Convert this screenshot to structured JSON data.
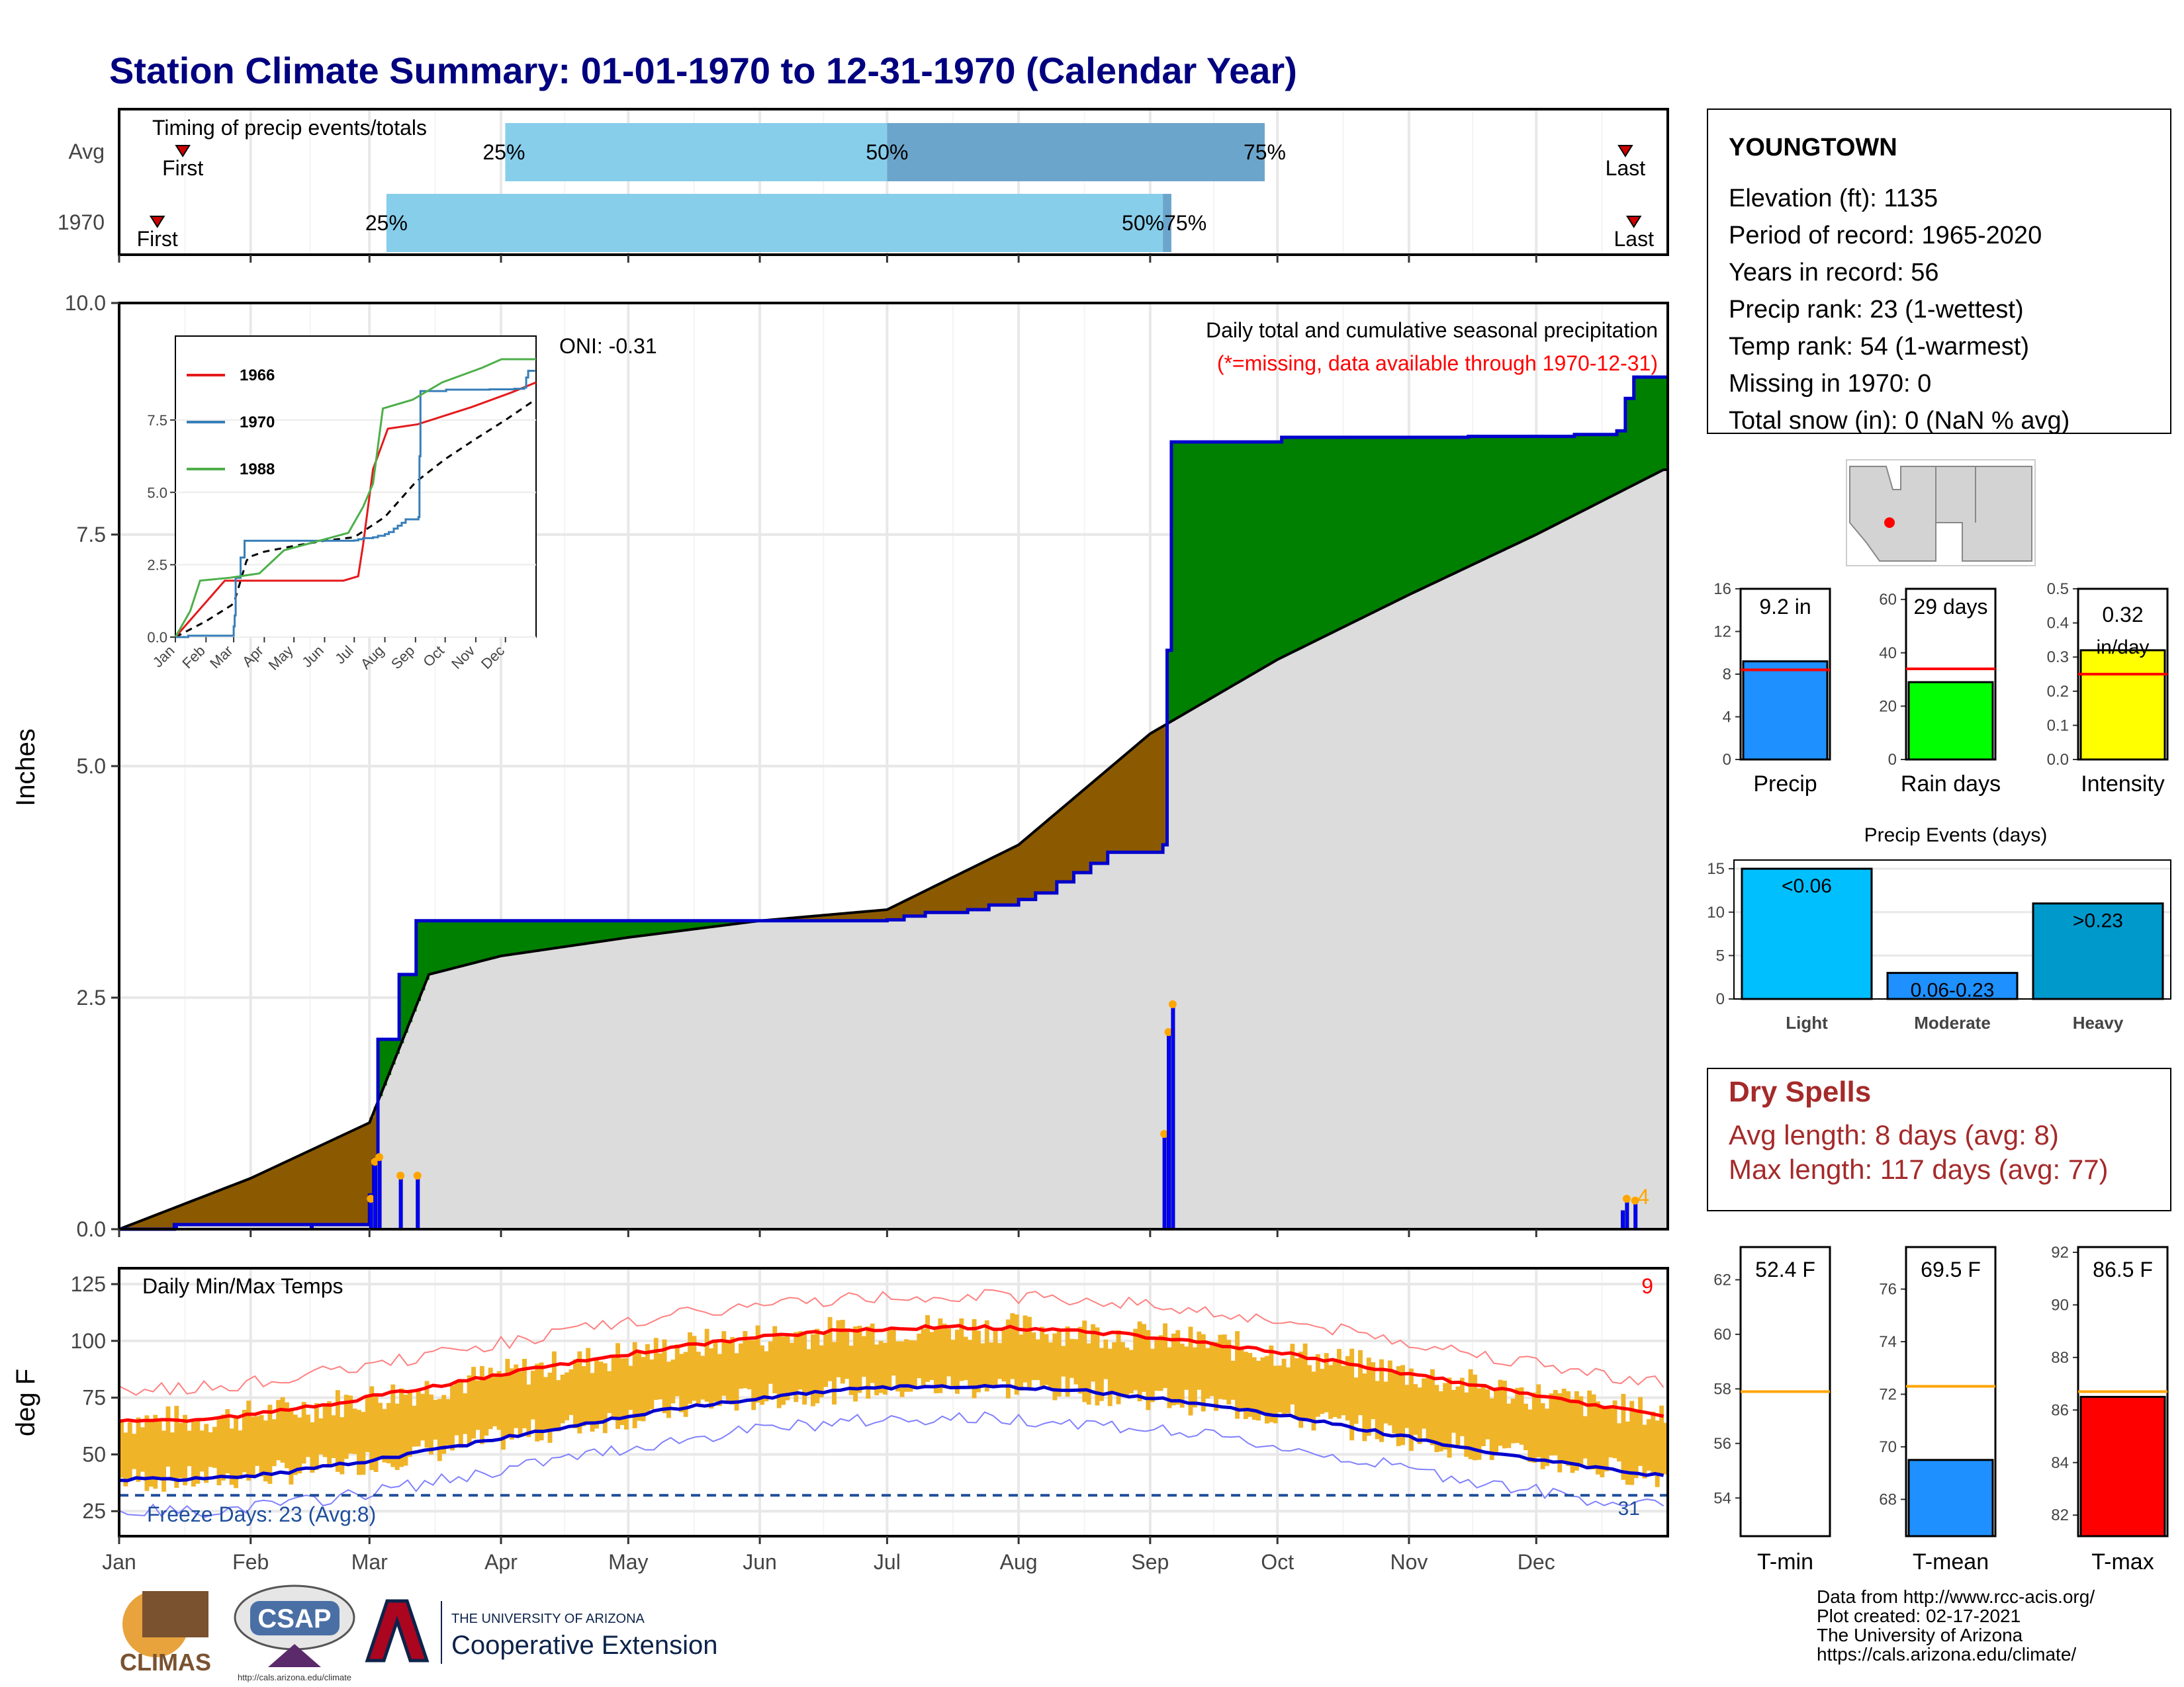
{
  "title": "Station Climate Summary: 01-01-1970 to 12-31-1970 (Calendar Year)",
  "colors": {
    "title": "#000080",
    "above_normal": "#008000",
    "below_normal": "#8b5a00",
    "normal_fill": "#dcdcdc",
    "observed_line": "#0000cc",
    "daily_precip": "#0000ff",
    "temp_bar": "#f0b429",
    "tmax_normal": "#ff0000",
    "tmin_normal": "#0000cc",
    "freeze_line": "#1f4e9c",
    "precip_bar": "#1e90ff",
    "rain_bar": "#00ff00",
    "intensity_bar": "#ffff00",
    "tmin_bar": "#ffffff",
    "tmean_bar": "#1e90ff",
    "tmax_bar": "#ff0000",
    "light": "#00bfff",
    "moderate": "#1e90ff",
    "heavy": "#0099cc",
    "dry_spell_text": "#a52a2a",
    "q25": "#87ceeb",
    "q75": "#6ca5cc"
  },
  "timing": {
    "title": "Timing of precip events/totals",
    "rows": [
      "Avg",
      "1970"
    ],
    "first_label": "First",
    "last_label": "Last",
    "avg": {
      "first": "Jan 16",
      "p25": "Apr 2",
      "p50": "Jul 1",
      "p75": "Sep 28",
      "last": "Dec 22"
    },
    "y1970": {
      "first": "Jan 10",
      "p25": "Mar 5",
      "p50": "Sep 4",
      "p75": "Sep 6",
      "last": "Dec 24"
    },
    "labels": {
      "p25": "25%",
      "p50": "50%",
      "p75": "75%",
      "overlap": "50%75%"
    }
  },
  "main": {
    "ylabel": "Inches",
    "header": "Daily total and cumulative seasonal precipitation",
    "missing_note": "(*=missing, data available through 1970-12-31)",
    "oni": "ONI: -0.31",
    "corner_count": "4",
    "y_ticks": [
      "0.0",
      "2.5",
      "5.0",
      "7.5",
      "10.0"
    ]
  },
  "inset": {
    "legend": [
      "1966",
      "1970",
      "1988"
    ],
    "legend_colors": [
      "#e41a1c",
      "#377eb8",
      "#4daf4a"
    ],
    "y_ticks": [
      "0.0",
      "2.5",
      "5.0",
      "7.5"
    ],
    "x_ticks": [
      "Jan",
      "Feb",
      "Mar",
      "Apr",
      "May",
      "Jun",
      "Jul",
      "Aug",
      "Sep",
      "Oct",
      "Nov",
      "Dec"
    ]
  },
  "temps": {
    "ylabel": "deg F",
    "title": "Daily Min/Max Temps",
    "freeze_label": "Freeze Days: 23 (Avg:8)",
    "corner_red": "9",
    "corner_blue": "31",
    "y_ticks": [
      "25",
      "50",
      "75",
      "100",
      "125"
    ]
  },
  "months": [
    "Jan",
    "Feb",
    "Mar",
    "Apr",
    "May",
    "Jun",
    "Jul",
    "Aug",
    "Sep",
    "Oct",
    "Nov",
    "Dec"
  ],
  "station": {
    "name": "YOUNGTOWN",
    "lines": [
      "Elevation (ft): 1135",
      "Period of record: 1965-2020",
      "Years in record: 56",
      "Precip rank: 23 (1-wettest)",
      "Temp rank: 54 (1-warmest)",
      "Missing in 1970: 0",
      "Total snow (in): 0 (NaN % avg)"
    ]
  },
  "summary_bars": [
    {
      "label": "Precip",
      "value_text": "9.2 in",
      "value": 9.2,
      "avg": 8.4,
      "ticks": [
        "0",
        "4",
        "8",
        "12",
        "16"
      ],
      "max": 16
    },
    {
      "label": "Rain days",
      "value_text": "29 days",
      "value": 29,
      "avg": 34,
      "ticks": [
        "0",
        "20",
        "40",
        "60"
      ],
      "max": 64
    },
    {
      "label": "Intensity",
      "value_text": "0.32\nin/day",
      "value_line1": "0.32",
      "value_line2": "in/day",
      "value": 0.32,
      "avg": 0.25,
      "ticks": [
        "0.0",
        "0.1",
        "0.2",
        "0.3",
        "0.4",
        "0.5"
      ],
      "max": 0.5
    }
  ],
  "precip_events": {
    "title": "Precip Events (days)",
    "categories": [
      "Light",
      "Moderate",
      "Heavy"
    ],
    "values": [
      15,
      3,
      11
    ],
    "bar_labels": [
      "<0.06",
      "0.06-0.23",
      ">0.23"
    ],
    "ticks": [
      "0",
      "5",
      "10",
      "15"
    ]
  },
  "dry_spells": {
    "title": "Dry Spells",
    "avg_line": "Avg length: 8 days (avg: 8)",
    "max_line": "Max length: 117 days (avg: 77)"
  },
  "temp_bars": [
    {
      "label": "T-min",
      "value_text": "52.4 F",
      "value": 52.4,
      "avg": 57.9,
      "min": 52.6,
      "max": 63.2,
      "ticks": [
        "54",
        "56",
        "58",
        "60",
        "62"
      ]
    },
    {
      "label": "T-mean",
      "value_text": "69.5 F",
      "value": 69.5,
      "avg": 72.3,
      "min": 66.6,
      "max": 77.6,
      "ticks": [
        "68",
        "70",
        "72",
        "74",
        "76"
      ]
    },
    {
      "label": "T-max",
      "value_text": "86.5 F",
      "value": 86.5,
      "avg": 86.7,
      "min": 81.2,
      "max": 92.2,
      "ticks": [
        "82",
        "84",
        "86",
        "88",
        "90",
        "92"
      ]
    }
  ],
  "footer": {
    "lines": [
      "Data from http://www.rcc-acis.org/",
      "Plot created: 02-17-2021",
      "The University of Arizona",
      "https://cals.arizona.edu/climate/"
    ],
    "climas": "CLIMAS",
    "csap": "CSAP",
    "csap_url": "http://cals.arizona.edu/climate",
    "ua_top": "THE UNIVERSITY OF ARIZONA",
    "ua_bottom": "Cooperative Extension"
  },
  "chart_data": {
    "type": "line",
    "title": "Daily total and cumulative seasonal precipitation",
    "ylabel": "Inches",
    "ylim": [
      0,
      10
    ],
    "series": [
      {
        "name": "1970",
        "x": [
          "Jan 1",
          "Jan 14",
          "Feb 15",
          "Mar 1",
          "Mar 2",
          "Mar 3",
          "Mar 8",
          "Mar 12",
          "Jun 1",
          "Jul 1",
          "Jul 5",
          "Jul 10",
          "Jul 20",
          "Jul 25",
          "Aug 1",
          "Aug 5",
          "Aug 10",
          "Aug 14",
          "Aug 18",
          "Aug 22",
          "Sep 4",
          "Sep 5",
          "Sep 6",
          "Sep 30",
          "Oct 2",
          "Nov 1",
          "Nov 15",
          "Dec 1",
          "Dec 10",
          "Dec 20",
          "Dec 22",
          "Dec 24",
          "Dec 31"
        ],
        "values": [
          0.0,
          0.05,
          0.05,
          0.37,
          0.75,
          2.05,
          2.75,
          3.33,
          3.33,
          3.34,
          3.38,
          3.42,
          3.45,
          3.5,
          3.56,
          3.63,
          3.75,
          3.85,
          3.95,
          4.07,
          4.15,
          6.25,
          8.5,
          8.5,
          8.55,
          8.55,
          8.56,
          8.56,
          8.58,
          8.62,
          8.97,
          9.2,
          9.2
        ]
      },
      {
        "name": "",
        "x": [
          "Jan 1",
          "Feb 1",
          "Mar 1",
          "Mar 15",
          "Apr 1",
          "May 1",
          "Jun 1",
          "Jul 1",
          "Aug 1",
          "Sep 1",
          "Oct 1",
          "Nov 1",
          "Dec 1",
          "Dec 31"
        ],
        "values": [
          0.0,
          0.55,
          1.15,
          2.75,
          2.95,
          3.15,
          3.33,
          3.45,
          4.15,
          5.35,
          6.15,
          6.85,
          7.5,
          8.2
        ]
      }
    ],
    "daily_precip": {
      "x": [
        "Jan 14",
        "Feb 15",
        "Mar 1",
        "Mar 2",
        "Mar 3",
        "Mar 8",
        "Mar 12",
        "Sep 4",
        "Sep 5",
        "Sep 6",
        "Dec 21",
        "Dec 22",
        "Dec 24"
      ],
      "values": [
        0.05,
        0.03,
        0.3,
        0.7,
        0.75,
        0.55,
        0.55,
        1.0,
        2.1,
        2.4,
        0.2,
        0.3,
        0.28
      ]
    }
  }
}
